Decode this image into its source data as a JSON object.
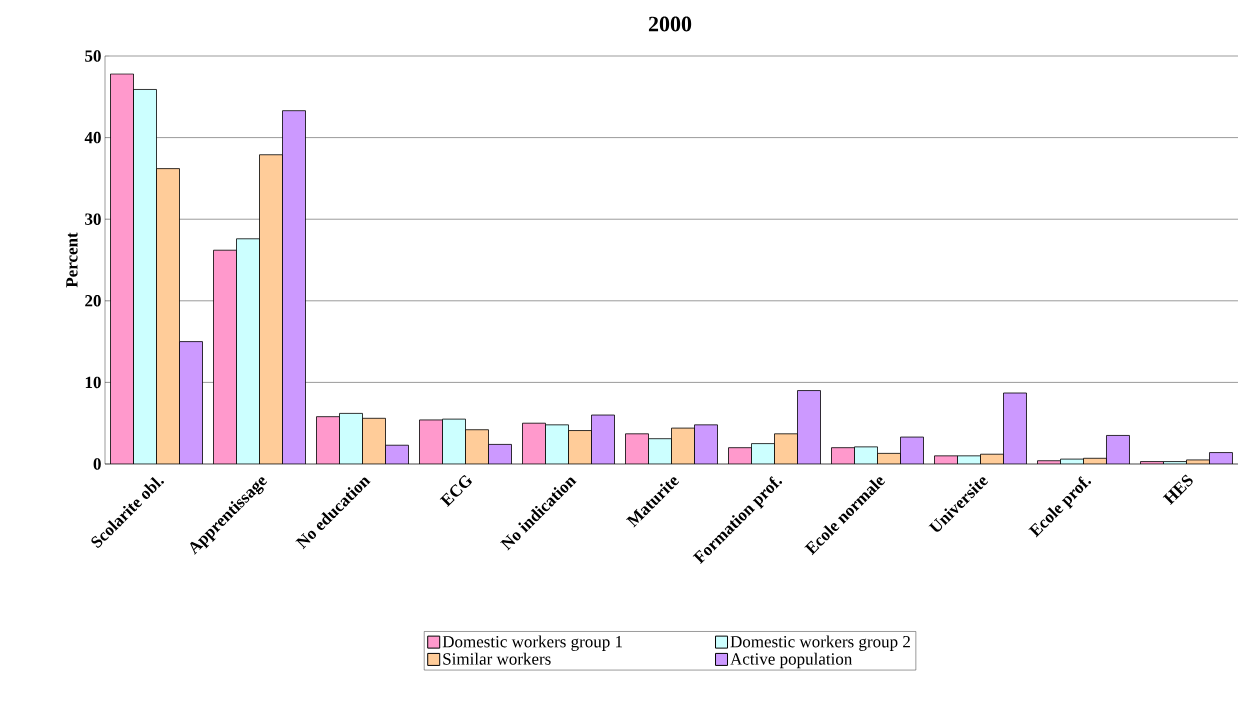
{
  "chart_data": {
    "type": "bar",
    "title": "2000",
    "ylabel": "Percent",
    "categories": [
      "Scolarite obl.",
      "Apprentissage",
      "No education",
      "ECG",
      "No indication",
      "Maturite",
      "Formation prof.",
      "Ecole normale",
      "Universite",
      "Ecole prof.",
      "HES"
    ],
    "series": [
      {
        "name": "Domestic workers group 1",
        "color": "#ff99cc",
        "values": [
          47.8,
          26.2,
          5.8,
          5.4,
          5.0,
          3.7,
          2.0,
          2.0,
          1.0,
          0.4,
          0.3
        ]
      },
      {
        "name": "Domestic workers group 2",
        "color": "#ccffff",
        "values": [
          45.9,
          27.6,
          6.2,
          5.5,
          4.8,
          3.1,
          2.5,
          2.1,
          1.0,
          0.6,
          0.3
        ]
      },
      {
        "name": "Similar workers",
        "color": "#ffcc99",
        "values": [
          36.2,
          37.9,
          5.6,
          4.2,
          4.1,
          4.4,
          3.7,
          1.3,
          1.2,
          0.7,
          0.5
        ]
      },
      {
        "name": "Active population",
        "color": "#cc99ff",
        "values": [
          15.0,
          43.3,
          2.3,
          2.4,
          6.0,
          4.8,
          9.0,
          3.3,
          8.7,
          3.5,
          1.4
        ]
      }
    ],
    "ylim": [
      0,
      50
    ],
    "yticks": [
      0,
      10,
      20,
      30,
      40,
      50
    ],
    "grid": "y",
    "legend": "bottom"
  }
}
